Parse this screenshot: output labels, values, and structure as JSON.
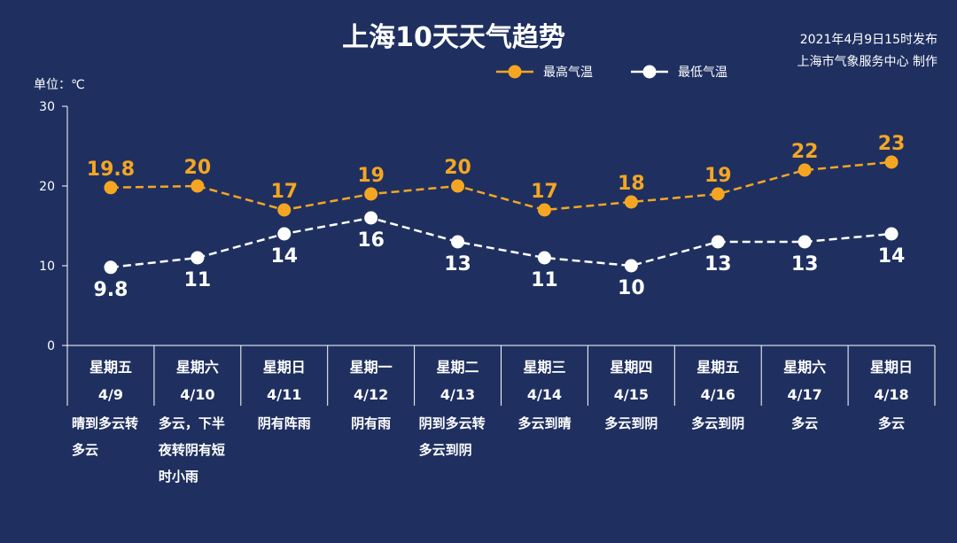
{
  "title": "上海10天天气趋势",
  "publish": {
    "line1": "2021年4月9日15时发布",
    "line2": "上海市气象服务中心 制作"
  },
  "unit_label": "单位：℃",
  "colors": {
    "background": "#1f3060",
    "high": "#f4a623",
    "low": "#ffffff",
    "axis": "#ffffff"
  },
  "chart_data": {
    "type": "line",
    "title": "上海10天天气趋势",
    "ylabel": "单位：℃",
    "ylim": [
      0,
      30
    ],
    "yticks": [
      0,
      10,
      20,
      30
    ],
    "grid": false,
    "legend_position": "top-right",
    "categories": [
      {
        "day": "星期五",
        "date": "4/9",
        "weather": [
          "晴到多云转",
          "多云"
        ]
      },
      {
        "day": "星期六",
        "date": "4/10",
        "weather": [
          "多云，下半",
          "夜转阴有短",
          "时小雨"
        ]
      },
      {
        "day": "星期日",
        "date": "4/11",
        "weather": [
          "阴有阵雨"
        ]
      },
      {
        "day": "星期一",
        "date": "4/12",
        "weather": [
          "阴有雨"
        ]
      },
      {
        "day": "星期二",
        "date": "4/13",
        "weather": [
          "阴到多云转",
          "多云到阴"
        ]
      },
      {
        "day": "星期三",
        "date": "4/14",
        "weather": [
          "多云到晴"
        ]
      },
      {
        "day": "星期四",
        "date": "4/15",
        "weather": [
          "多云到阴"
        ]
      },
      {
        "day": "星期五",
        "date": "4/16",
        "weather": [
          "多云到阴"
        ]
      },
      {
        "day": "星期六",
        "date": "4/17",
        "weather": [
          "多云"
        ]
      },
      {
        "day": "星期日",
        "date": "4/18",
        "weather": [
          "多云"
        ]
      }
    ],
    "series": [
      {
        "name": "最高气温",
        "values": [
          19.8,
          20,
          17,
          19,
          20,
          17,
          18,
          19,
          22,
          23
        ],
        "labels": [
          "19.8",
          "20",
          "17",
          "19",
          "20",
          "17",
          "18",
          "19",
          "22",
          "23"
        ]
      },
      {
        "name": "最低气温",
        "values": [
          9.8,
          11,
          14,
          16,
          13,
          11,
          10,
          13,
          13,
          14
        ],
        "labels": [
          "9.8",
          "11",
          "14",
          "16",
          "13",
          "11",
          "10",
          "13",
          "13",
          "14"
        ]
      }
    ]
  }
}
